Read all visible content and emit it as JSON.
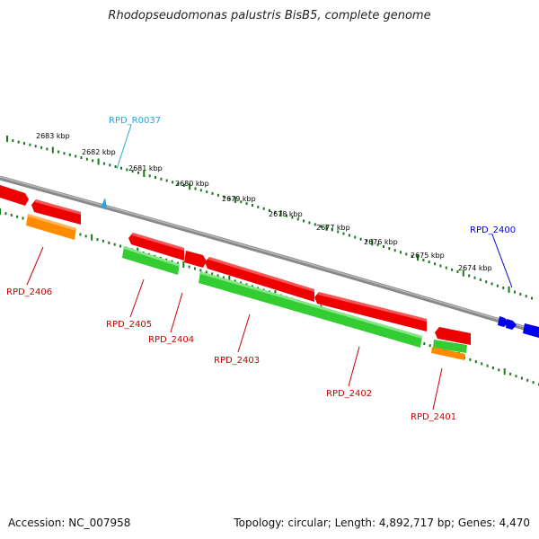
{
  "title": "Rhodopseudomonas palustris BisB5, complete genome",
  "footer": {
    "accession": "Accession: NC_007958",
    "summary": "Topology: circular; Length: 4,892,717 bp; Genes: 4,470"
  },
  "colors": {
    "backbone": "#8a8a8a",
    "tick": "#1a7a1a",
    "cds": "#ee0000",
    "gene": "#33cc33",
    "rna": "#ff8c00",
    "blue_feature": "#0000ee",
    "label_red": "#cc0000",
    "label_blue": "#0000cc",
    "label_cyan": "#22aadd"
  },
  "kbp_ticks": [
    "2683 kbp",
    "2682 kbp",
    "2681 kbp",
    "2680 kbp",
    "2679 kbp",
    "2678 kbp",
    "2677 kbp",
    "2676 kbp",
    "2675 kbp",
    "2674 kbp"
  ],
  "gene_labels": {
    "rpd_r0037": "RPD_R0037",
    "rpd_2400": "RPD_2400",
    "rpd_2401": "RPD_2401",
    "rpd_2402": "RPD_2402",
    "rpd_2403": "RPD_2403",
    "rpd_2404": "RPD_2404",
    "rpd_2405": "RPD_2405",
    "rpd_2406": "RPD_2406"
  }
}
